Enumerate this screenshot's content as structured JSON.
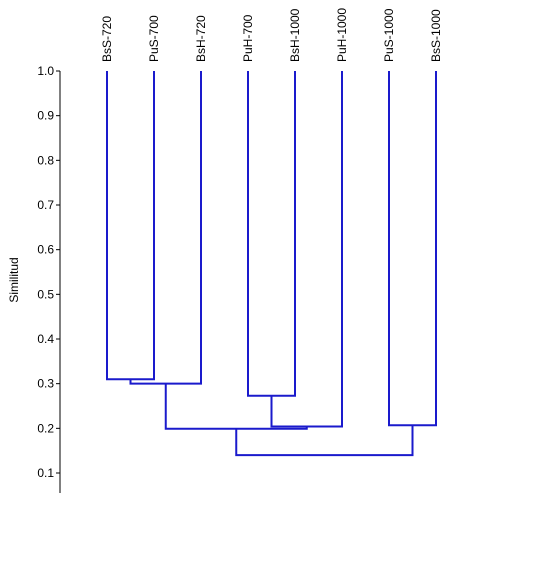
{
  "chart_data": {
    "type": "dendrogram",
    "ylabel": "Similitud",
    "ylim": [
      0.05,
      1.0
    ],
    "yticks": [
      "1.0",
      "0.9",
      "0.8",
      "0.7",
      "0.6",
      "0.5",
      "0.4",
      "0.3",
      "0.2",
      "0.1"
    ],
    "ytick_values": [
      1.0,
      0.9,
      0.8,
      0.7,
      0.6,
      0.5,
      0.4,
      0.3,
      0.2,
      0.1
    ],
    "leaves": [
      "BsS-720",
      "PuS-700",
      "BsH-720",
      "PuH-700",
      "BsH-1000",
      "PuH-1000",
      "PuS-1000",
      "BsS-1000"
    ],
    "merges": [
      {
        "left": "leaf:0",
        "right": "leaf:1",
        "similarity": 0.31
      },
      {
        "left": "node:0",
        "right": "leaf:2",
        "similarity": 0.3
      },
      {
        "left": "leaf:3",
        "right": "leaf:4",
        "similarity": 0.273
      },
      {
        "left": "node:2",
        "right": "leaf:5",
        "similarity": 0.204
      },
      {
        "left": "leaf:6",
        "right": "leaf:7",
        "similarity": 0.207
      },
      {
        "left": "node:1",
        "right": "node:3",
        "similarity": 0.199
      },
      {
        "left": "node:5",
        "right": "node:4",
        "similarity": 0.14
      }
    ],
    "line_color": "#1a1acc",
    "grid": false
  }
}
